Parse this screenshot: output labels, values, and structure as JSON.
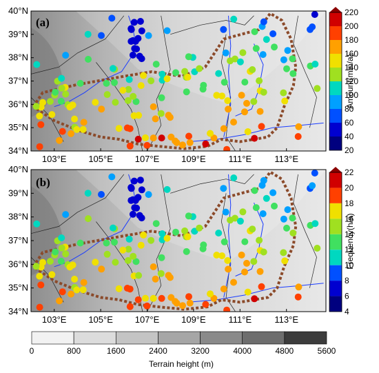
{
  "panels": [
    {
      "label": "(a)",
      "colorbar": {
        "title": "Amount(mm/a)",
        "ticks": [
          "220",
          "200",
          "180",
          "160",
          "140",
          "120",
          "100",
          "80",
          "60",
          "40",
          "20"
        ]
      }
    },
    {
      "label": "(b)",
      "colorbar": {
        "title": "Frequency(h/a)",
        "ticks": [
          "22",
          "20",
          "18",
          "16",
          "14",
          "12",
          "10",
          "8",
          "6",
          "4"
        ]
      }
    }
  ],
  "axes": {
    "lat_labels": [
      "40°N",
      "39°N",
      "38°N",
      "37°N",
      "36°N",
      "35°N",
      "34°N"
    ],
    "lon_labels": [
      "103°E",
      "105°E",
      "107°E",
      "109°E",
      "111°E",
      "113°E"
    ],
    "lat_range": [
      34,
      40
    ],
    "lon_range": [
      102,
      114.7
    ]
  },
  "terrain_legend": {
    "title": "Terrain height (m)",
    "ticks": [
      "0",
      "800",
      "1600",
      "2400",
      "3200",
      "4000",
      "4800",
      "5600"
    ],
    "colors": [
      "#f2f2f2",
      "#dcdcdc",
      "#c4c4c4",
      "#a6a6a6",
      "#8a8a8a",
      "#6e6e6e",
      "#3c3c3c"
    ]
  },
  "colors": {
    "station_scale": [
      "#00007f",
      "#0000d0",
      "#0050ff",
      "#00a0ff",
      "#00d8c0",
      "#40e060",
      "#a0e020",
      "#f0e000",
      "#ffa000",
      "#ff4000",
      "#d00000"
    ],
    "region_outline": "#8b4a2a",
    "river": "#1a3cff",
    "border": "#222222"
  }
}
